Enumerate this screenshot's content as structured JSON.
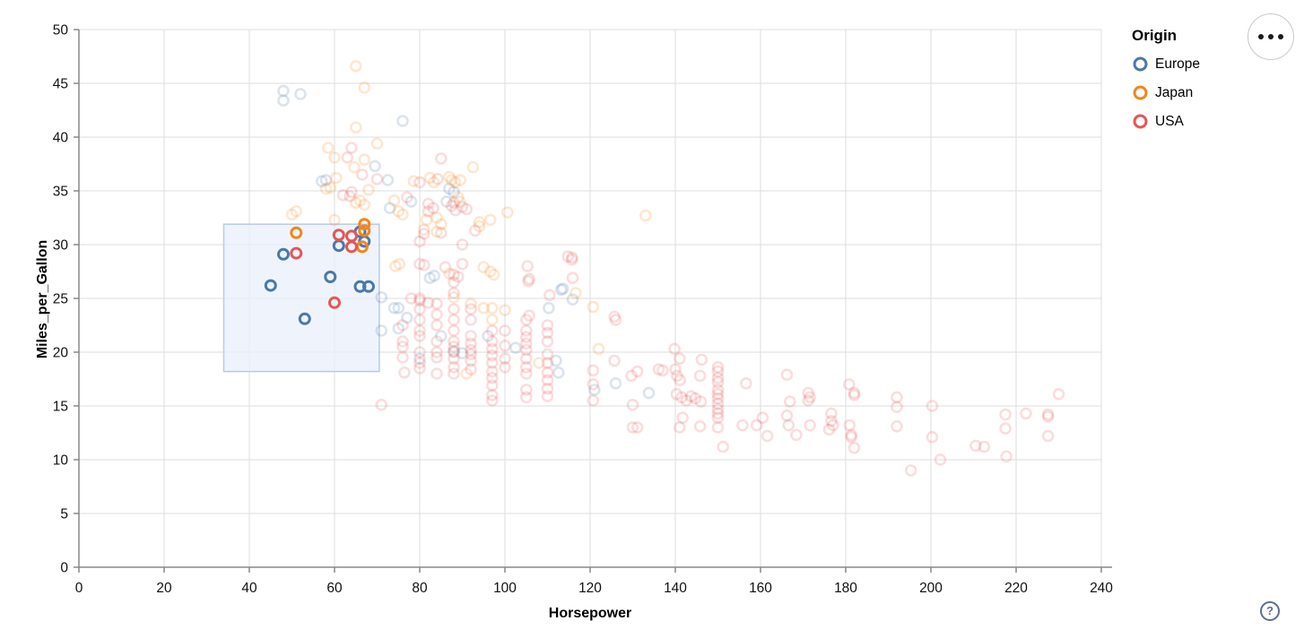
{
  "legend": {
    "title": "Origin",
    "items": [
      {
        "label": "Europe",
        "color": "#4c78a8"
      },
      {
        "label": "Japan",
        "color": "#f58518"
      },
      {
        "label": "USA",
        "color": "#e45756"
      }
    ]
  },
  "buttons": {
    "menu_icon": "ellipsis",
    "help_label": "?"
  },
  "chart_data": {
    "type": "scatter",
    "title": "",
    "xlabel": "Horsepower",
    "ylabel": "Miles_per_Gallon",
    "xlim": [
      0,
      240
    ],
    "ylim": [
      0,
      50
    ],
    "x_ticks": [
      0,
      20,
      40,
      60,
      80,
      100,
      120,
      140,
      160,
      180,
      200,
      220,
      240
    ],
    "y_ticks": [
      0,
      5,
      10,
      15,
      20,
      25,
      30,
      35,
      40,
      45,
      50
    ],
    "grid": true,
    "legend_position": "top-right",
    "point_shape": "open-circle",
    "unselected_opacity": 0.2,
    "brush_selection": {
      "x_range": [
        34,
        70.5
      ],
      "y_range": [
        18.2,
        31.9
      ],
      "fill": "#eaf0fb",
      "stroke": "#b6c9ef"
    },
    "series": [
      {
        "name": "Europe",
        "color": "#4c78a8",
        "points": [
          [
            48,
            44.3
          ],
          [
            52,
            44
          ],
          [
            48,
            43.4
          ],
          [
            76,
            41.5
          ],
          [
            69.5,
            37.3
          ],
          [
            72.5,
            36
          ],
          [
            58,
            36
          ],
          [
            57,
            35.9
          ],
          [
            86.9,
            35.2
          ],
          [
            88,
            34.9
          ],
          [
            86.3,
            34
          ],
          [
            78,
            34
          ],
          [
            73,
            33.4
          ],
          [
            71,
            25.1
          ],
          [
            74,
            24.1
          ],
          [
            75,
            24.1
          ],
          [
            75,
            22.2
          ],
          [
            71,
            22
          ],
          [
            82.4,
            26.9
          ],
          [
            83.4,
            27.1
          ],
          [
            113.2,
            25.8
          ],
          [
            115.9,
            24.9
          ],
          [
            110.3,
            24.1
          ],
          [
            113.6,
            25.9
          ],
          [
            77,
            23.2
          ],
          [
            85,
            21.5
          ],
          [
            90,
            19.9
          ],
          [
            121,
            16.5
          ],
          [
            126,
            17.1
          ],
          [
            133.8,
            16.2
          ],
          [
            102.5,
            20.4
          ],
          [
            112,
            19.2
          ],
          [
            112.6,
            18.1
          ],
          [
            88,
            20.1
          ],
          [
            96,
            21.5
          ],
          [
            80,
            19.4
          ],
          [
            48,
            29.1
          ],
          [
            45,
            26.2
          ],
          [
            59,
            27
          ],
          [
            66,
            26.1
          ],
          [
            68,
            26.1
          ],
          [
            53,
            23.1
          ],
          [
            61,
            29.9
          ],
          [
            66,
            31.2
          ],
          [
            67,
            30.3
          ]
        ]
      },
      {
        "name": "Japan",
        "color": "#f58518",
        "points": [
          [
            65,
            46.6
          ],
          [
            67,
            44.6
          ],
          [
            65,
            40.9
          ],
          [
            70,
            39.4
          ],
          [
            58.5,
            39
          ],
          [
            60,
            38.1
          ],
          [
            67,
            37.9
          ],
          [
            64.6,
            37.2
          ],
          [
            92.5,
            37.2
          ],
          [
            60.4,
            36.2
          ],
          [
            78.6,
            35.9
          ],
          [
            82.4,
            36.2
          ],
          [
            86.9,
            36.3
          ],
          [
            89.5,
            36
          ],
          [
            83.3,
            35.8
          ],
          [
            87.5,
            36
          ],
          [
            88.3,
            35.8
          ],
          [
            68,
            35.1
          ],
          [
            58,
            35.2
          ],
          [
            59,
            35.3
          ],
          [
            66,
            34.1
          ],
          [
            65,
            33.9
          ],
          [
            67,
            33.7
          ],
          [
            74,
            34.1
          ],
          [
            75,
            33.1
          ],
          [
            76,
            32.8
          ],
          [
            81.6,
            32.3
          ],
          [
            84,
            32.5
          ],
          [
            85,
            31.9
          ],
          [
            81,
            31.4
          ],
          [
            84,
            31.2
          ],
          [
            89,
            34.4
          ],
          [
            89.4,
            34
          ],
          [
            94,
            32.1
          ],
          [
            94,
            31.7
          ],
          [
            51,
            33.1
          ],
          [
            50,
            32.8
          ],
          [
            60,
            32.3
          ],
          [
            100.6,
            33
          ],
          [
            96.6,
            32.3
          ],
          [
            133,
            32.7
          ],
          [
            74.3,
            28
          ],
          [
            75.2,
            28.2
          ],
          [
            95,
            27.9
          ],
          [
            96.6,
            27.5
          ],
          [
            97.4,
            27.2
          ],
          [
            87,
            27.3
          ],
          [
            116.6,
            25.5
          ],
          [
            120.7,
            24.2
          ],
          [
            100,
            23.9
          ],
          [
            95,
            24.1
          ],
          [
            97,
            24.1
          ],
          [
            88,
            25.1
          ],
          [
            91,
            18
          ],
          [
            92,
            24.5
          ],
          [
            97,
            23
          ],
          [
            122,
            20.3
          ],
          [
            108,
            19
          ],
          [
            51,
            31.1
          ],
          [
            67,
            31.9
          ],
          [
            67,
            31.3
          ],
          [
            66.5,
            29.8
          ]
        ]
      },
      {
        "name": "USA",
        "color": "#e45756",
        "points": [
          [
            64,
            39
          ],
          [
            63,
            38.1
          ],
          [
            66.5,
            36.5
          ],
          [
            70,
            36.1
          ],
          [
            80,
            35.8
          ],
          [
            84.2,
            36.1
          ],
          [
            85,
            38
          ],
          [
            62,
            34.6
          ],
          [
            63.6,
            34.5
          ],
          [
            64,
            34.9
          ],
          [
            77,
            34.4
          ],
          [
            82,
            33.8
          ],
          [
            82,
            33.1
          ],
          [
            87.5,
            33.6
          ],
          [
            88.4,
            33.2
          ],
          [
            88,
            33.9
          ],
          [
            90,
            33.5
          ],
          [
            91,
            33.3
          ],
          [
            83.2,
            33.4
          ],
          [
            81,
            31
          ],
          [
            85,
            31.1
          ],
          [
            80,
            30.3
          ],
          [
            90,
            30
          ],
          [
            93,
            31.3
          ],
          [
            80,
            28.2
          ],
          [
            81,
            28.1
          ],
          [
            90,
            28.2
          ],
          [
            105.3,
            28
          ],
          [
            105.7,
            26.8
          ],
          [
            114.8,
            28.9
          ],
          [
            115.7,
            28.6
          ],
          [
            88,
            27.2
          ],
          [
            89,
            27
          ],
          [
            86,
            27.9
          ],
          [
            115.9,
            26.9
          ],
          [
            105.5,
            26.6
          ],
          [
            110.5,
            25.3
          ],
          [
            78,
            25
          ],
          [
            80,
            24.8
          ],
          [
            82,
            24.6
          ],
          [
            105.7,
            23.4
          ],
          [
            125.7,
            23.3
          ],
          [
            115.8,
            28.8
          ],
          [
            126,
            23
          ],
          [
            76,
            22.5
          ],
          [
            76,
            21
          ],
          [
            76,
            20.5
          ],
          [
            76,
            19.5
          ],
          [
            80,
            25
          ],
          [
            80,
            24
          ],
          [
            80,
            23
          ],
          [
            80,
            22
          ],
          [
            80,
            21.5
          ],
          [
            80,
            20
          ],
          [
            80,
            19
          ],
          [
            80,
            18.5
          ],
          [
            84,
            24.5
          ],
          [
            84,
            23.5
          ],
          [
            84,
            22.5
          ],
          [
            84,
            21
          ],
          [
            84,
            20
          ],
          [
            84,
            19.5
          ],
          [
            84,
            18
          ],
          [
            88,
            26.5
          ],
          [
            88,
            25.5
          ],
          [
            88,
            24
          ],
          [
            88,
            23
          ],
          [
            88,
            22
          ],
          [
            88,
            21
          ],
          [
            88,
            20.5
          ],
          [
            88,
            20
          ],
          [
            88,
            19.4
          ],
          [
            88,
            18.6
          ],
          [
            88,
            18
          ],
          [
            92,
            24
          ],
          [
            92,
            23
          ],
          [
            92,
            21.5
          ],
          [
            92,
            20.8
          ],
          [
            92,
            20.2
          ],
          [
            92,
            19.8
          ],
          [
            92,
            19.2
          ],
          [
            92,
            18.4
          ],
          [
            97,
            22
          ],
          [
            97,
            21
          ],
          [
            97,
            20.3
          ],
          [
            97,
            19.7
          ],
          [
            97,
            19
          ],
          [
            97,
            18.2
          ],
          [
            97,
            17.6
          ],
          [
            97,
            16.9
          ],
          [
            97,
            16
          ],
          [
            97,
            15.5
          ],
          [
            100,
            22
          ],
          [
            100,
            20.6
          ],
          [
            100,
            19.4
          ],
          [
            100,
            18.6
          ],
          [
            105,
            23
          ],
          [
            105,
            22
          ],
          [
            105,
            21.4
          ],
          [
            105,
            20.8
          ],
          [
            105,
            20.2
          ],
          [
            105,
            19.4
          ],
          [
            105,
            18.6
          ],
          [
            105,
            18
          ],
          [
            105,
            16.5
          ],
          [
            105,
            15.8
          ],
          [
            110,
            22.5
          ],
          [
            110,
            21.8
          ],
          [
            110,
            21
          ],
          [
            110,
            19.8
          ],
          [
            110,
            19
          ],
          [
            110,
            18.1
          ],
          [
            110,
            17.4
          ],
          [
            110,
            16.6
          ],
          [
            110,
            15.9
          ],
          [
            71,
            15.1
          ],
          [
            76.4,
            18.1
          ],
          [
            120.7,
            18.3
          ],
          [
            120.7,
            17
          ],
          [
            120.7,
            15.5
          ],
          [
            125.7,
            19.2
          ],
          [
            129.7,
            17.8
          ],
          [
            131.1,
            18.2
          ],
          [
            130,
            15.1
          ],
          [
            131.1,
            13
          ],
          [
            130,
            13
          ],
          [
            136.1,
            18.4
          ],
          [
            137,
            18.3
          ],
          [
            139.8,
            20.3
          ],
          [
            141,
            19.4
          ],
          [
            140,
            18.4
          ],
          [
            140.4,
            17.8
          ],
          [
            141.1,
            17.4
          ],
          [
            140.3,
            16.1
          ],
          [
            141.5,
            15.8
          ],
          [
            142.6,
            15.5
          ],
          [
            141,
            13
          ],
          [
            141.7,
            13.9
          ],
          [
            143.7,
            15.9
          ],
          [
            144.7,
            15.7
          ],
          [
            146.2,
            19.3
          ],
          [
            145.8,
            17.8
          ],
          [
            146,
            15.4
          ],
          [
            145.8,
            13.1
          ],
          [
            150,
            18.6
          ],
          [
            150,
            18.2
          ],
          [
            150,
            17.6
          ],
          [
            150,
            17.2
          ],
          [
            150,
            16.5
          ],
          [
            150,
            16.1
          ],
          [
            150,
            15.7
          ],
          [
            150,
            15.2
          ],
          [
            150,
            14.7
          ],
          [
            150,
            14.3
          ],
          [
            150,
            13.9
          ],
          [
            150,
            13
          ],
          [
            151.2,
            11.2
          ],
          [
            156.6,
            17.1
          ],
          [
            155.8,
            13.2
          ],
          [
            159.1,
            13.2
          ],
          [
            160.5,
            13.9
          ],
          [
            161.6,
            12.2
          ],
          [
            166.2,
            17.9
          ],
          [
            166.9,
            15.4
          ],
          [
            166.2,
            14.1
          ],
          [
            166.6,
            13.2
          ],
          [
            171.2,
            16.2
          ],
          [
            171.6,
            15.8
          ],
          [
            171.2,
            15.5
          ],
          [
            171.6,
            13.2
          ],
          [
            168.4,
            12.3
          ],
          [
            176.6,
            14.3
          ],
          [
            176.6,
            13.6
          ],
          [
            177,
            13.2
          ],
          [
            176.1,
            12.8
          ],
          [
            180.8,
            17
          ],
          [
            180.9,
            13.2
          ],
          [
            181.3,
            12.3
          ],
          [
            182,
            16.2
          ],
          [
            182,
            16
          ],
          [
            192,
            15.8
          ],
          [
            192,
            14.9
          ],
          [
            192,
            13.1
          ],
          [
            200.3,
            15
          ],
          [
            200.3,
            12.1
          ],
          [
            181.3,
            12.1
          ],
          [
            182,
            11.1
          ],
          [
            202.2,
            10
          ],
          [
            195.3,
            9
          ],
          [
            210.5,
            11.3
          ],
          [
            212.5,
            11.2
          ],
          [
            217.5,
            14.2
          ],
          [
            217.5,
            12.9
          ],
          [
            217.7,
            10.3
          ],
          [
            222.3,
            14.3
          ],
          [
            227.5,
            14.2
          ],
          [
            227.5,
            14
          ],
          [
            227.5,
            12.2
          ],
          [
            230,
            16.1
          ],
          [
            51,
            29.2
          ],
          [
            60,
            24.6
          ],
          [
            64,
            30.8
          ],
          [
            64,
            29.8
          ],
          [
            61,
            30.9
          ]
        ]
      }
    ]
  }
}
